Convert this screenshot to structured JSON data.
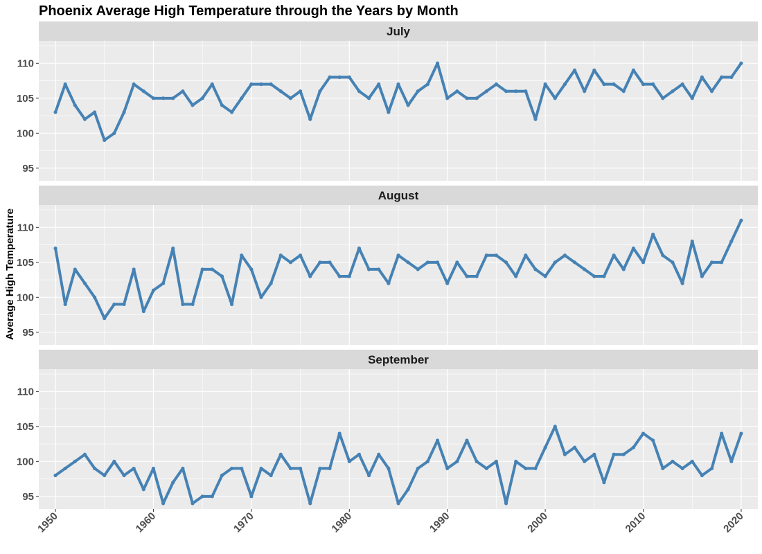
{
  "chart_data": {
    "type": "line",
    "title": "Phoenix Average High Temperature through the Years by Month",
    "xlabel": "",
    "ylabel": "Average High Temperature",
    "xlim": [
      1948.3,
      2021.7
    ],
    "ylim": [
      93.2,
      113.2
    ],
    "x_ticks": [
      1950,
      1960,
      1970,
      1980,
      1990,
      2000,
      2010,
      2020
    ],
    "y_ticks": [
      95,
      100,
      105,
      110
    ],
    "grid": true,
    "legend": "none",
    "colors": {
      "line": "#4682B4",
      "panel": "#EBEBEB",
      "strip": "#D9D9D9",
      "grid": "#FFFFFF"
    },
    "x": [
      1950,
      1951,
      1952,
      1953,
      1954,
      1955,
      1956,
      1957,
      1958,
      1959,
      1960,
      1961,
      1962,
      1963,
      1964,
      1965,
      1966,
      1967,
      1968,
      1969,
      1970,
      1971,
      1972,
      1973,
      1974,
      1975,
      1976,
      1977,
      1978,
      1979,
      1980,
      1981,
      1982,
      1983,
      1984,
      1985,
      1986,
      1987,
      1988,
      1989,
      1990,
      1991,
      1992,
      1993,
      1994,
      1995,
      1996,
      1997,
      1998,
      1999,
      2000,
      2001,
      2002,
      2003,
      2004,
      2005,
      2006,
      2007,
      2008,
      2009,
      2010,
      2011,
      2012,
      2013,
      2014,
      2015,
      2016,
      2017,
      2018,
      2019,
      2020
    ],
    "panels": [
      {
        "label": "July",
        "values": [
          103,
          107,
          104,
          102,
          103,
          99,
          100,
          103,
          107,
          106,
          105,
          105,
          105,
          106,
          104,
          105,
          107,
          104,
          103,
          105,
          107,
          107,
          107,
          106,
          105,
          106,
          102,
          106,
          108,
          108,
          108,
          106,
          105,
          107,
          103,
          107,
          104,
          106,
          107,
          110,
          105,
          106,
          105,
          105,
          106,
          107,
          106,
          106,
          106,
          102,
          107,
          105,
          107,
          109,
          106,
          109,
          107,
          107,
          106,
          109,
          107,
          107,
          105,
          106,
          107,
          105,
          108,
          106,
          108,
          108,
          110
        ]
      },
      {
        "label": "August",
        "values": [
          107,
          99,
          104,
          102,
          100,
          97,
          99,
          99,
          104,
          98,
          101,
          102,
          107,
          99,
          99,
          104,
          104,
          103,
          99,
          106,
          104,
          100,
          102,
          106,
          105,
          106,
          103,
          105,
          105,
          103,
          103,
          107,
          104,
          104,
          102,
          106,
          105,
          104,
          105,
          105,
          102,
          105,
          103,
          103,
          106,
          106,
          105,
          103,
          106,
          104,
          103,
          105,
          106,
          105,
          104,
          103,
          103,
          106,
          104,
          107,
          105,
          109,
          106,
          105,
          102,
          108,
          103,
          105,
          105,
          108,
          111
        ]
      },
      {
        "label": "September",
        "values": [
          98,
          99,
          100,
          101,
          99,
          98,
          100,
          98,
          99,
          96,
          99,
          94,
          97,
          99,
          94,
          95,
          95,
          98,
          99,
          99,
          95,
          99,
          98,
          101,
          99,
          99,
          94,
          99,
          99,
          104,
          100,
          101,
          98,
          101,
          99,
          94,
          96,
          99,
          100,
          103,
          99,
          100,
          103,
          100,
          99,
          100,
          94,
          100,
          99,
          99,
          102,
          105,
          101,
          102,
          100,
          101,
          97,
          101,
          101,
          102,
          104,
          103,
          99,
          100,
          99,
          100,
          98,
          99,
          104,
          100,
          104
        ]
      }
    ]
  }
}
